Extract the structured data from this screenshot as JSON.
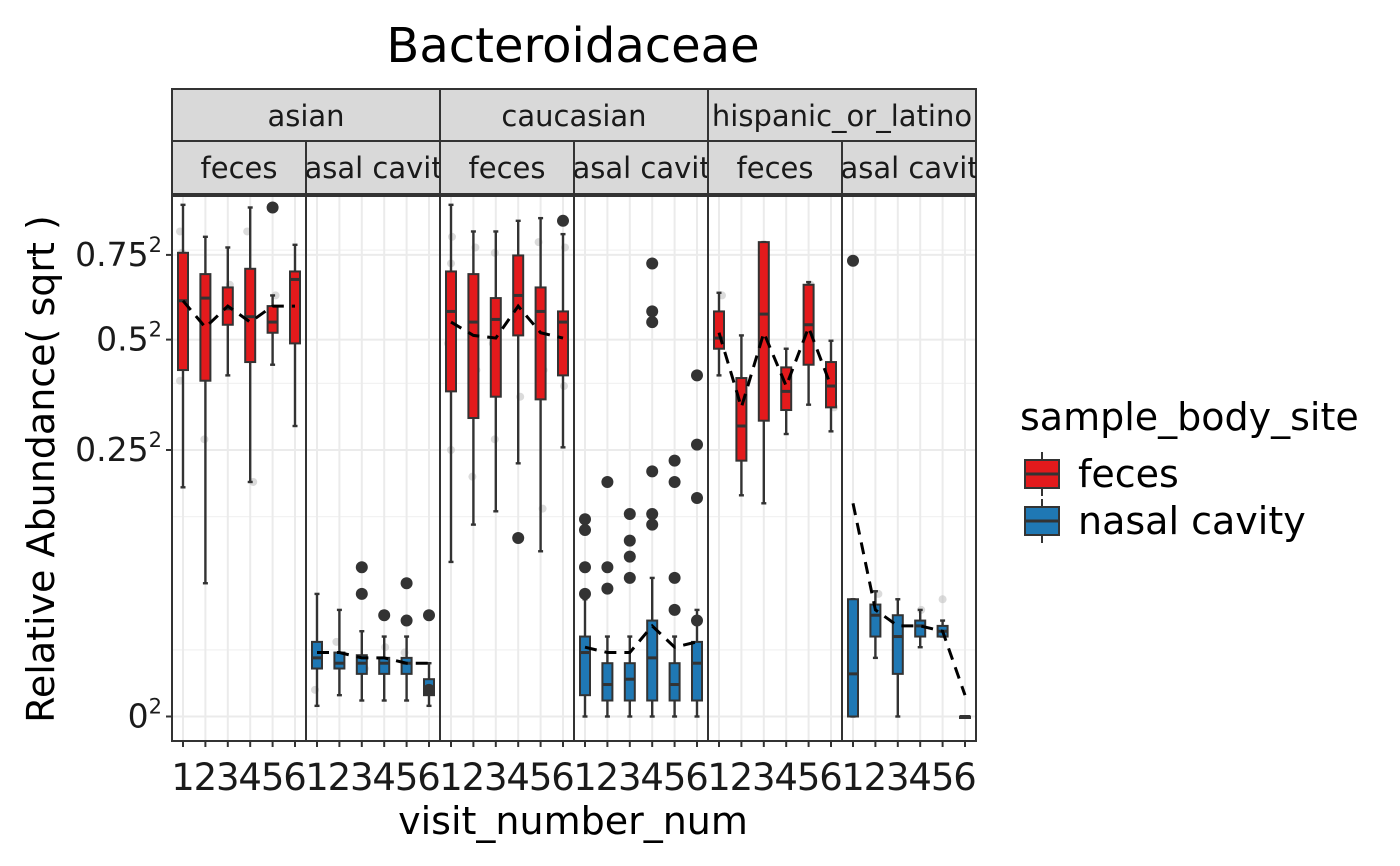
{
  "chart_data": {
    "type": "box",
    "title": "Bacteroidaceae",
    "xlabel": "visit_number_num",
    "ylabel": "Relative Abundance( sqrt )",
    "y_scale": "sqrt",
    "y_ticks": [
      {
        "value": 0,
        "label_base": "0",
        "label_exp": "2"
      },
      {
        "value": 0.25,
        "label_base": "0.25",
        "label_exp": "2"
      },
      {
        "value": 0.5,
        "label_base": "0.5",
        "label_exp": "2"
      },
      {
        "value": 0.75,
        "label_base": "0.75",
        "label_exp": "2"
      }
    ],
    "x_ticks": [
      "1",
      "2",
      "3",
      "4",
      "5",
      "6"
    ],
    "grid": true,
    "legend": {
      "title": "sample_body_site",
      "position": "right",
      "items": [
        {
          "label": "feces",
          "color": "#E31A1C"
        },
        {
          "label": "nasal cavity",
          "color": "#1F78B4"
        }
      ]
    },
    "colors": {
      "feces": "#E31A1C",
      "nasal cavity": "#1F78B4"
    },
    "groups": [
      {
        "label": "asian",
        "panels": [
          {
            "label": "feces",
            "site": "feces",
            "boxes": [
              {
                "x": 1,
                "lw": 0.43,
                "q1": 0.65,
                "med": 0.78,
                "q3": 0.87,
                "uw": 0.96
              },
              {
                "x": 2,
                "lw": 0.25,
                "q1": 0.63,
                "med": 0.785,
                "q3": 0.83,
                "uw": 0.9
              },
              {
                "x": 3,
                "lw": 0.64,
                "q1": 0.735,
                "med": 0.765,
                "q3": 0.805,
                "uw": 0.88
              },
              {
                "x": 4,
                "lw": 0.44,
                "q1": 0.665,
                "med": 0.75,
                "q3": 0.84,
                "uw": 0.955
              },
              {
                "x": 5,
                "lw": 0.66,
                "q1": 0.72,
                "med": 0.74,
                "q3": 0.77,
                "uw": 0.79
              },
              {
                "x": 6,
                "lw": 0.545,
                "q1": 0.7,
                "med": 0.82,
                "q3": 0.835,
                "uw": 0.885
              }
            ],
            "trend": [
              0.78,
              0.73,
              0.77,
              0.74,
              0.77,
              0.77
            ],
            "outliers": [
              {
                "x": 5,
                "y": 0.955
              }
            ],
            "jitter": [
              [
                1,
                0.91
              ],
              [
                1,
                0.87
              ],
              [
                1,
                0.8
              ],
              [
                1,
                0.63
              ],
              [
                1,
                0.66
              ],
              [
                2,
                0.82
              ],
              [
                2,
                0.8
              ],
              [
                2,
                0.52
              ],
              [
                3,
                0.81
              ],
              [
                3,
                0.78
              ],
              [
                4,
                0.91
              ],
              [
                4,
                0.44
              ],
              [
                4,
                0.78
              ],
              [
                5,
                0.79
              ],
              [
                6,
                0.74
              ],
              [
                6,
                0.82
              ]
            ]
          },
          {
            "label": "nasal cavity",
            "site": "nasal cavity",
            "boxes": [
              {
                "x": 1,
                "lw": 0.02,
                "q1": 0.09,
                "med": 0.11,
                "q3": 0.14,
                "uw": 0.23
              },
              {
                "x": 2,
                "lw": 0.04,
                "q1": 0.09,
                "med": 0.1,
                "q3": 0.12,
                "uw": 0.2
              },
              {
                "x": 3,
                "lw": 0.03,
                "q1": 0.08,
                "med": 0.1,
                "q3": 0.115,
                "uw": 0.16
              },
              {
                "x": 4,
                "lw": 0.03,
                "q1": 0.08,
                "med": 0.1,
                "q3": 0.11,
                "uw": 0.15
              },
              {
                "x": 5,
                "lw": 0.03,
                "q1": 0.08,
                "med": 0.1,
                "q3": 0.11,
                "uw": 0.15
              },
              {
                "x": 6,
                "lw": 0.02,
                "q1": 0.04,
                "med": 0.05,
                "q3": 0.07,
                "uw": 0.1
              }
            ],
            "trend": [
              0.12,
              0.12,
              0.11,
              0.11,
              0.1,
              0.1
            ],
            "outliers": [
              {
                "x": 3,
                "y": 0.28
              },
              {
                "x": 3,
                "y": 0.23
              },
              {
                "x": 4,
                "y": 0.19
              },
              {
                "x": 5,
                "y": 0.25
              },
              {
                "x": 5,
                "y": 0.18
              },
              {
                "x": 6,
                "y": 0.19
              },
              {
                "x": 6,
                "y": 0.05
              }
            ],
            "jitter": [
              [
                1,
                0.05
              ],
              [
                2,
                0.14
              ],
              [
                3,
                0.09
              ],
              [
                4,
                0.13
              ],
              [
                5,
                0.12
              ]
            ]
          }
        ]
      },
      {
        "label": "caucasian",
        "panels": [
          {
            "label": "feces",
            "site": "feces",
            "boxes": [
              {
                "x": 1,
                "lw": 0.29,
                "q1": 0.61,
                "med": 0.76,
                "q3": 0.835,
                "uw": 0.96
              },
              {
                "x": 2,
                "lw": 0.36,
                "q1": 0.56,
                "med": 0.74,
                "q3": 0.83,
                "uw": 0.91
              },
              {
                "x": 3,
                "lw": 0.385,
                "q1": 0.6,
                "med": 0.745,
                "q3": 0.785,
                "uw": 0.91
              },
              {
                "x": 4,
                "lw": 0.475,
                "q1": 0.715,
                "med": 0.79,
                "q3": 0.865,
                "uw": 0.93
              },
              {
                "x": 5,
                "lw": 0.31,
                "q1": 0.595,
                "med": 0.76,
                "q3": 0.805,
                "uw": 0.935
              },
              {
                "x": 6,
                "lw": 0.505,
                "q1": 0.64,
                "med": 0.74,
                "q3": 0.76,
                "uw": 0.905
              }
            ],
            "trend": [
              0.74,
              0.715,
              0.71,
              0.77,
              0.72,
              0.71
            ],
            "outliers": [
              {
                "x": 4,
                "y": 0.335
              },
              {
                "x": 6,
                "y": 0.93
              }
            ],
            "jitter": [
              [
                1,
                0.9
              ],
              [
                1,
                0.85
              ],
              [
                1,
                0.8
              ],
              [
                1,
                0.7
              ],
              [
                1,
                0.5
              ],
              [
                2,
                0.88
              ],
              [
                2,
                0.65
              ],
              [
                2,
                0.45
              ],
              [
                3,
                0.87
              ],
              [
                3,
                0.7
              ],
              [
                3,
                0.52
              ],
              [
                4,
                0.85
              ],
              [
                4,
                0.6
              ],
              [
                5,
                0.89
              ],
              [
                5,
                0.65
              ],
              [
                5,
                0.39
              ],
              [
                6,
                0.88
              ],
              [
                6,
                0.62
              ]
            ]
          },
          {
            "label": "nasal cavity",
            "site": "nasal cavity",
            "boxes": [
              {
                "x": 1,
                "lw": 0.0,
                "q1": 0.04,
                "med": 0.12,
                "q3": 0.15,
                "uw": 0.22
              },
              {
                "x": 2,
                "lw": 0.0,
                "q1": 0.03,
                "med": 0.06,
                "q3": 0.1,
                "uw": 0.15
              },
              {
                "x": 3,
                "lw": 0.0,
                "q1": 0.03,
                "med": 0.07,
                "q3": 0.1,
                "uw": 0.15
              },
              {
                "x": 4,
                "lw": 0.0,
                "q1": 0.03,
                "med": 0.11,
                "q3": 0.18,
                "uw": 0.26
              },
              {
                "x": 5,
                "lw": 0.0,
                "q1": 0.03,
                "med": 0.06,
                "q3": 0.1,
                "uw": 0.15
              },
              {
                "x": 6,
                "lw": 0.0,
                "q1": 0.03,
                "med": 0.1,
                "q3": 0.14,
                "uw": 0.2
              }
            ],
            "trend": [
              0.13,
              0.12,
              0.12,
              0.17,
              0.13,
              0.14
            ],
            "outliers": [
              {
                "x": 1,
                "y": 0.37
              },
              {
                "x": 1,
                "y": 0.35
              },
              {
                "x": 1,
                "y": 0.28
              },
              {
                "x": 1,
                "y": 0.23
              },
              {
                "x": 2,
                "y": 0.44
              },
              {
                "x": 2,
                "y": 0.28
              },
              {
                "x": 2,
                "y": 0.24
              },
              {
                "x": 3,
                "y": 0.38
              },
              {
                "x": 3,
                "y": 0.33
              },
              {
                "x": 3,
                "y": 0.3
              },
              {
                "x": 3,
                "y": 0.26
              },
              {
                "x": 4,
                "y": 0.85
              },
              {
                "x": 4,
                "y": 0.76
              },
              {
                "x": 4,
                "y": 0.74
              },
              {
                "x": 4,
                "y": 0.46
              },
              {
                "x": 4,
                "y": 0.38
              },
              {
                "x": 4,
                "y": 0.36
              },
              {
                "x": 5,
                "y": 0.48
              },
              {
                "x": 5,
                "y": 0.44
              },
              {
                "x": 5,
                "y": 0.26
              },
              {
                "x": 5,
                "y": 0.2
              },
              {
                "x": 6,
                "y": 0.64
              },
              {
                "x": 6,
                "y": 0.51
              },
              {
                "x": 6,
                "y": 0.41
              },
              {
                "x": 6,
                "y": 0.18
              }
            ]
          }
        ]
      },
      {
        "label": "hispanic_or_latino",
        "panels": [
          {
            "label": "feces",
            "site": "feces",
            "boxes": [
              {
                "x": 1,
                "lw": 0.64,
                "q1": 0.69,
                "med": 0.71,
                "q3": 0.76,
                "uw": 0.795
              },
              {
                "x": 2,
                "lw": 0.415,
                "q1": 0.48,
                "med": 0.545,
                "q3": 0.635,
                "uw": 0.715
              },
              {
                "x": 3,
                "lw": 0.4,
                "q1": 0.555,
                "med": 0.755,
                "q3": 0.89,
                "uw": 0.89
              },
              {
                "x": 4,
                "lw": 0.53,
                "q1": 0.575,
                "med": 0.61,
                "q3": 0.655,
                "uw": 0.69
              },
              {
                "x": 5,
                "lw": 0.585,
                "q1": 0.66,
                "med": 0.735,
                "q3": 0.81,
                "uw": 0.815
              },
              {
                "x": 6,
                "lw": 0.535,
                "q1": 0.58,
                "med": 0.62,
                "q3": 0.665,
                "uw": 0.705
              }
            ],
            "trend": [
              0.72,
              0.58,
              0.72,
              0.62,
              0.73,
              0.62
            ],
            "outliers": [],
            "jitter": [
              [
                1,
                0.79
              ],
              [
                2,
                0.6
              ],
              [
                3,
                0.88
              ],
              [
                4,
                0.61
              ],
              [
                5,
                0.81
              ],
              [
                6,
                0.58
              ]
            ]
          },
          {
            "label": "nasal cavity",
            "site": "nasal cavity",
            "boxes": [
              {
                "x": 1,
                "lw": 0.0,
                "q1": 0.0,
                "med": 0.08,
                "q3": 0.22,
                "uw": 0.22
              },
              {
                "x": 2,
                "lw": 0.11,
                "q1": 0.15,
                "med": 0.19,
                "q3": 0.21,
                "uw": 0.235
              },
              {
                "x": 3,
                "lw": 0.0,
                "q1": 0.08,
                "med": 0.15,
                "q3": 0.19,
                "uw": 0.22
              },
              {
                "x": 4,
                "lw": 0.13,
                "q1": 0.15,
                "med": 0.17,
                "q3": 0.18,
                "uw": 0.2
              },
              {
                "x": 5,
                "lw": 0.15,
                "q1": 0.15,
                "med": 0.16,
                "q3": 0.17,
                "uw": 0.18
              },
              {
                "x": 6,
                "lw": 0.0,
                "q1": 0.0,
                "med": 0.0,
                "q3": 0.0,
                "uw": 0.0
              }
            ],
            "trend": [
              0.4,
              0.2,
              0.17,
              0.17,
              0.16,
              0.04
            ],
            "outliers": [
              {
                "x": 1,
                "y": 0.855
              }
            ],
            "jitter": [
              [
                2,
                0.23
              ],
              [
                4,
                0.2
              ],
              [
                5,
                0.22
              ]
            ]
          }
        ]
      }
    ]
  }
}
